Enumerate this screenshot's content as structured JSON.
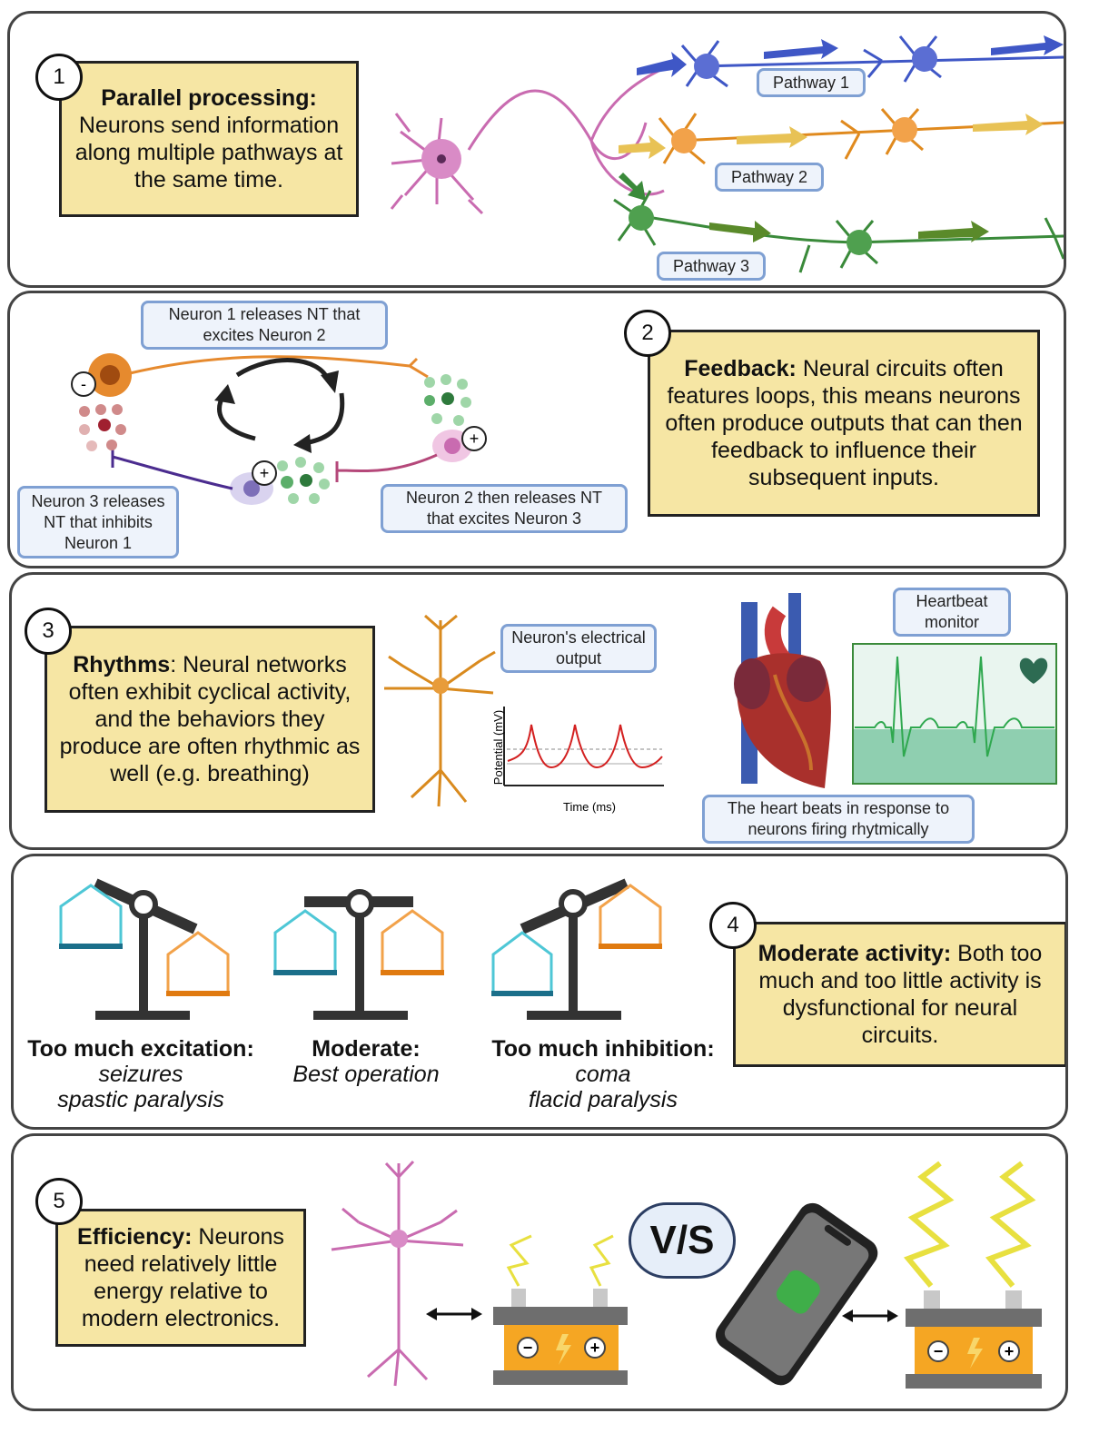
{
  "panel1": {
    "number": "1",
    "title": "Parallel processing:",
    "text": "Neurons send information along multiple pathways at the same time.",
    "pathway1": "Pathway 1",
    "pathway2": "Pathway 2",
    "pathway3": "Pathway 3"
  },
  "panel2": {
    "number": "2",
    "title": "Feedback:",
    "text": "Neural circuits often features loops, this means neurons often produce outputs that can then feedback to influence their subsequent inputs.",
    "label_n1": "Neuron 1 releases NT that excites Neuron 2",
    "label_n2": "Neuron 2 then releases NT that excites Neuron 3",
    "label_n3": "Neuron 3 releases NT that inhibits Neuron 1",
    "sign_minus": "-",
    "sign_plus_a": "+",
    "sign_plus_b": "+"
  },
  "panel3": {
    "number": "3",
    "title": "Rhythms",
    "text": ": Neural networks often exhibit cyclical activity, and the behaviors they produce are often rhythmic as well (e.g. breathing)",
    "label_output": "Neuron's electrical output",
    "ylabel": "Potential (mV)",
    "xlabel": "Time (ms)",
    "label_monitor": "Heartbeat monitor",
    "label_heart": "The heart beats in response to neurons firing rhytmically"
  },
  "panel4": {
    "number": "4",
    "title": "Moderate activity:",
    "text": " Both too much and too little activity is dysfunctional for neural circuits.",
    "scale1_title": "Too much excitation:",
    "scale1_line1": "seizures",
    "scale1_line2": "spastic paralysis",
    "scale2_title": "Moderate:",
    "scale2_line1": "Best operation",
    "scale3_title": "Too much inhibition:",
    "scale3_line1": "coma",
    "scale3_line2": "flacid paralysis"
  },
  "panel5": {
    "number": "5",
    "title": "Efficiency:",
    "text": " Neurons need relatively little energy relative to modern electronics.",
    "vs": "V/S",
    "minus": "−",
    "plus": "+"
  },
  "colors": {
    "yellow_box": "#f6e6a4",
    "label_border": "#7fa0d3",
    "pathway1": "#3f57c6",
    "pathway2": "#e08a1e",
    "pathway3": "#3a8a3a",
    "neuron_pink": "#c96bb0",
    "cyan_pan": "#4ec7d6",
    "orange_pan": "#f2a24a",
    "battery": "#f5a623"
  }
}
